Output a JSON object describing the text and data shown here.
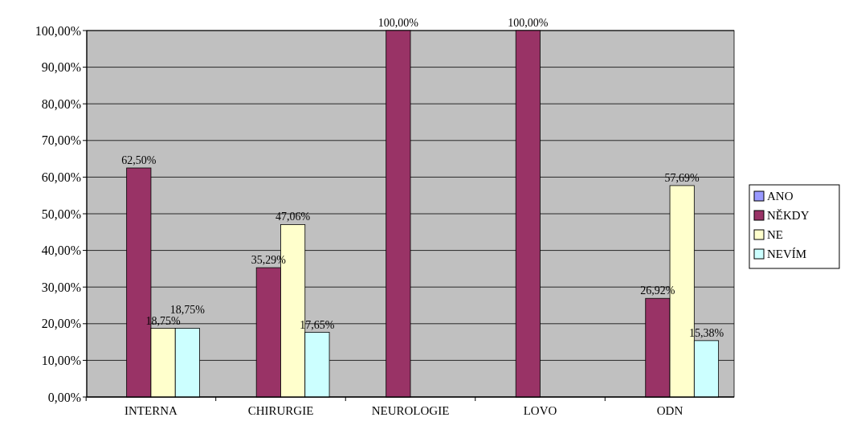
{
  "chart_data": {
    "type": "bar",
    "categories": [
      "INTERNA",
      "CHIRURGIE",
      "NEUROLOGIE",
      "LOVO",
      "ODN"
    ],
    "series": [
      {
        "name": "ANO",
        "color": "#9999ff",
        "values": [
          null,
          null,
          null,
          null,
          null
        ]
      },
      {
        "name": "NĚKDY",
        "color": "#993366",
        "values": [
          62.5,
          35.29,
          100,
          100,
          26.92
        ],
        "value_labels": [
          "62,50%",
          "35,29%",
          "100,00%",
          "100,00%",
          "26,92%"
        ]
      },
      {
        "name": "NE",
        "color": "#ffffcc",
        "values": [
          18.75,
          47.06,
          null,
          null,
          57.69
        ],
        "value_labels": [
          "18,75%",
          "47,06%",
          null,
          null,
          "57,69%"
        ]
      },
      {
        "name": "NEVÍM",
        "color": "#ccffff",
        "values": [
          18.75,
          17.65,
          null,
          null,
          15.38
        ],
        "value_labels": [
          "18,75%",
          "17,65%",
          null,
          null,
          "15,38%"
        ]
      }
    ],
    "ylim": [
      0,
      100
    ],
    "yticks": [
      {
        "value": 0,
        "label": "0,00%"
      },
      {
        "value": 10,
        "label": "10,00%"
      },
      {
        "value": 20,
        "label": "20,00%"
      },
      {
        "value": 30,
        "label": "30,00%"
      },
      {
        "value": 40,
        "label": "40,00%"
      },
      {
        "value": 50,
        "label": "50,00%"
      },
      {
        "value": 60,
        "label": "60,00%"
      },
      {
        "value": 70,
        "label": "70,00%"
      },
      {
        "value": 80,
        "label": "80,00%"
      },
      {
        "value": 90,
        "label": "90,00%"
      },
      {
        "value": 100,
        "label": "100,00%"
      }
    ],
    "grid": "y",
    "legend": "right"
  }
}
